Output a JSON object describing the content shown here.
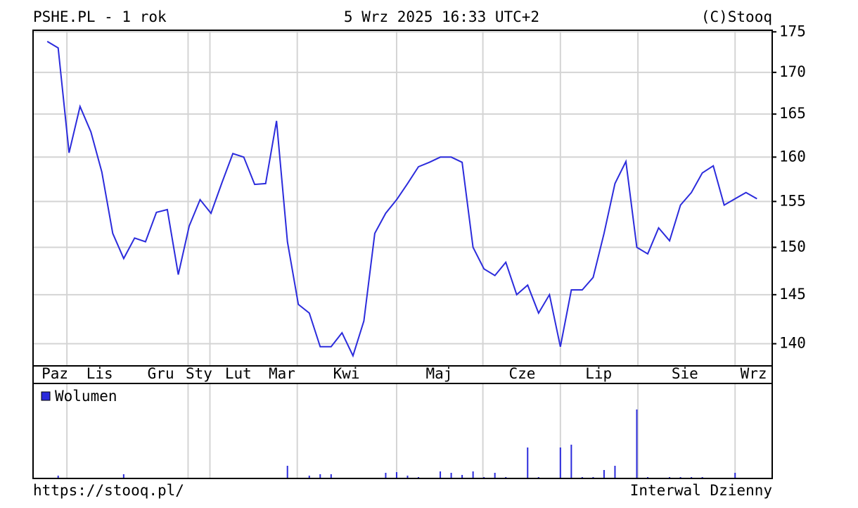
{
  "header": {
    "left": "PSHE.PL - 1 rok",
    "center": "5 Wrz 2025 16:33 UTC+2",
    "right": "(C)Stooq"
  },
  "footer": {
    "left": "https://stooq.pl/",
    "right": "Interwal Dzienny"
  },
  "chart_data": [
    {
      "type": "line",
      "log_scale": true,
      "grid": true,
      "x": [
        0,
        1,
        2,
        3,
        4,
        5,
        6,
        7,
        8,
        9,
        10,
        11,
        12,
        13,
        14,
        15,
        16,
        17,
        18,
        19,
        20,
        21,
        22,
        23,
        24,
        25,
        26,
        27,
        28,
        29,
        30,
        31,
        32,
        33,
        34,
        35,
        36,
        37,
        38,
        39,
        40,
        41,
        42,
        43,
        44,
        45,
        46,
        47,
        48,
        49,
        50,
        51,
        52,
        53,
        54,
        55,
        56,
        57,
        58,
        59,
        60,
        61,
        62,
        63,
        64,
        65
      ],
      "series": [
        {
          "color": "#2b2bdc",
          "values": [
            173.8,
            173.0,
            160.5,
            165.9,
            162.9,
            158.3,
            151.5,
            148.8,
            151.0,
            150.6,
            153.8,
            154.1,
            147.1,
            152.3,
            155.2,
            153.7,
            157.1,
            160.4,
            160.0,
            156.9,
            157.0,
            164.2,
            150.6,
            144.0,
            143.1,
            139.7,
            139.7,
            141.1,
            138.8,
            142.3,
            151.5,
            153.7,
            155.2,
            157.0,
            158.9,
            159.4,
            160.0,
            160.0,
            159.4,
            150.0,
            147.7,
            147.0,
            148.4,
            145.0,
            146.0,
            143.1,
            145.0,
            139.7,
            145.5,
            145.5,
            146.8,
            151.5,
            157.0,
            159.5,
            150.0,
            149.3,
            152.1,
            150.7,
            154.6,
            156.0,
            158.2,
            159.0,
            154.6,
            155.3,
            156.0,
            155.3
          ]
        }
      ],
      "xlim": [
        -1.3,
        66.4
      ],
      "xticks": [
        {
          "value": 0.7,
          "label": "Paz"
        },
        {
          "value": 4.8,
          "label": "Lis"
        },
        {
          "value": 10.4,
          "label": "Gru"
        },
        {
          "value": 13.9,
          "label": "Sty"
        },
        {
          "value": 17.5,
          "label": "Lut"
        },
        {
          "value": 21.5,
          "label": "Mar"
        },
        {
          "value": 27.4,
          "label": "Kwi"
        },
        {
          "value": 35.9,
          "label": "Maj"
        },
        {
          "value": 43.5,
          "label": "Cze"
        },
        {
          "value": 50.5,
          "label": "Lip"
        },
        {
          "value": 58.4,
          "label": "Sie"
        },
        {
          "value": 64.7,
          "label": "Wrz"
        }
      ],
      "xgrid": [
        1.8,
        12.9,
        14.9,
        22.9,
        32.0,
        39.9,
        47.0,
        54.1,
        63.0
      ],
      "ylim": [
        137.8,
        175.2
      ],
      "yticks": [
        140,
        145,
        150,
        155,
        160,
        165,
        170,
        175
      ]
    },
    {
      "type": "bar",
      "grid": true,
      "x": [
        0,
        1,
        2,
        3,
        4,
        5,
        6,
        7,
        8,
        9,
        10,
        11,
        12,
        13,
        14,
        15,
        16,
        17,
        18,
        19,
        20,
        21,
        22,
        23,
        24,
        25,
        26,
        27,
        28,
        29,
        30,
        31,
        32,
        33,
        34,
        35,
        36,
        37,
        38,
        39,
        40,
        41,
        42,
        43,
        44,
        45,
        46,
        47,
        48,
        49,
        50,
        51,
        52,
        53,
        54,
        55,
        56,
        57,
        58,
        59,
        60,
        61,
        62,
        63,
        64,
        65
      ],
      "series": [
        {
          "name": "Wolumen",
          "color": "#2b2bdc",
          "values": [
            0,
            4,
            0,
            0,
            0,
            1,
            0,
            6,
            0,
            0,
            0,
            1,
            0,
            0,
            0,
            1,
            1,
            1,
            1,
            1,
            1,
            1,
            18,
            0,
            4,
            6,
            6,
            0,
            1,
            0,
            0,
            8,
            9,
            4,
            2,
            0,
            10,
            8,
            5,
            10,
            2,
            8,
            2,
            0,
            44,
            2,
            0,
            44,
            48,
            2,
            2,
            12,
            18,
            0,
            98,
            2,
            0,
            2,
            2,
            2,
            2,
            0,
            0,
            8,
            0,
            0
          ]
        }
      ],
      "xlim": [
        -1.3,
        66.4
      ],
      "ylim": [
        0,
        135
      ]
    }
  ]
}
